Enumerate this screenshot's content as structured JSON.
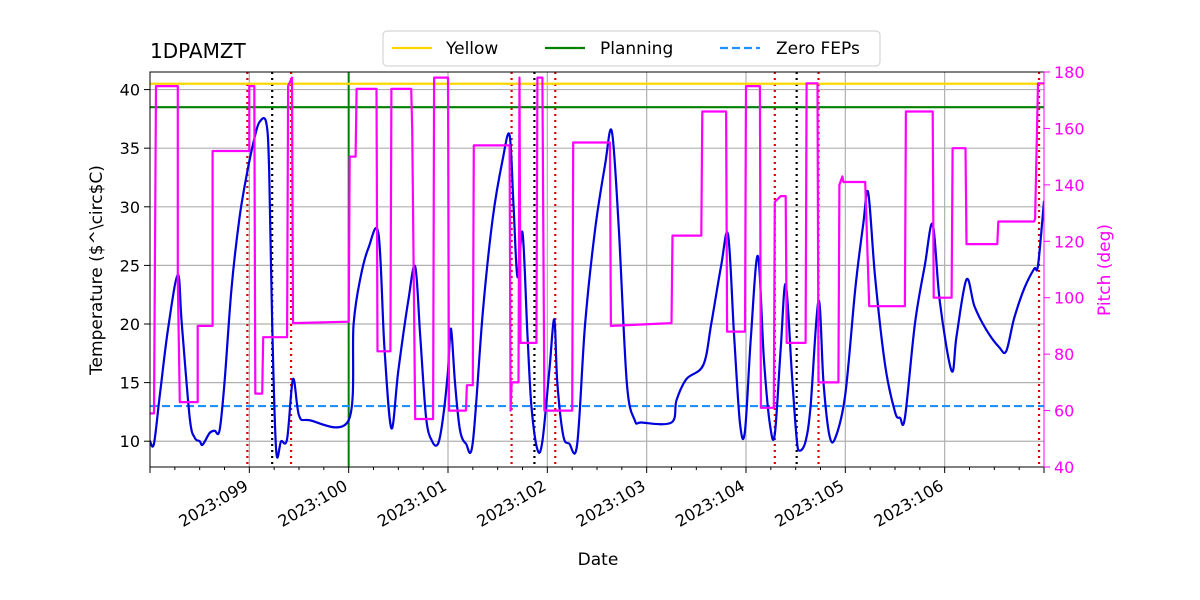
{
  "chart_data": {
    "type": "line",
    "title": "1DPAMZT",
    "xlabel": "Date",
    "ylabel": "Temperature ($^\\circ$C)",
    "ylabel_display": "Temperature ($^\\circ$C)",
    "y2label": "Pitch (deg)",
    "x_range_doy": [
      98.0,
      107.0
    ],
    "ylim": [
      7.8,
      41.5
    ],
    "y2lim": [
      40,
      180
    ],
    "x_ticks": [
      {
        "doy": 99,
        "label": "2023:099"
      },
      {
        "doy": 100,
        "label": "2023:100"
      },
      {
        "doy": 101,
        "label": "2023:101"
      },
      {
        "doy": 102,
        "label": "2023:102"
      },
      {
        "doy": 103,
        "label": "2023:103"
      },
      {
        "doy": 104,
        "label": "2023:104"
      },
      {
        "doy": 105,
        "label": "2023:105"
      },
      {
        "doy": 106,
        "label": "2023:106"
      }
    ],
    "y_ticks": [
      10,
      15,
      20,
      25,
      30,
      35,
      40
    ],
    "y2_ticks": [
      40,
      60,
      80,
      100,
      120,
      140,
      160,
      180
    ],
    "grid": true,
    "legend_placement": "top-center",
    "legend": [
      {
        "label": "Yellow",
        "color": "#ffd700",
        "style": "solid"
      },
      {
        "label": "Planning",
        "color": "#008000",
        "style": "solid"
      },
      {
        "label": "Zero FEPs",
        "color": "#1e90ff",
        "style": "dashed"
      }
    ],
    "limits": {
      "yellow": 40.5,
      "planning": 38.5,
      "zero_feps": 13.0
    },
    "planning_vline_doy": 100.0,
    "red_dotted_doy": [
      98.98,
      99.42,
      101.64,
      102.08,
      104.29,
      104.73,
      106.95
    ],
    "black_dotted_doy": [
      99.23,
      101.87,
      104.51
    ],
    "series": [
      {
        "name": "1DPAMZT",
        "axis": "left",
        "color": "#0000dd",
        "points": [
          [
            98.0,
            10.0
          ],
          [
            98.04,
            9.8
          ],
          [
            98.1,
            14.0
          ],
          [
            98.18,
            19.5
          ],
          [
            98.28,
            24.2
          ],
          [
            98.32,
            20.0
          ],
          [
            98.4,
            12.0
          ],
          [
            98.45,
            10.3
          ],
          [
            98.5,
            10.0
          ],
          [
            98.53,
            9.7
          ],
          [
            98.6,
            10.7
          ],
          [
            98.65,
            10.9
          ],
          [
            98.7,
            10.9
          ],
          [
            98.75,
            15.0
          ],
          [
            98.82,
            23.0
          ],
          [
            98.9,
            29.0
          ],
          [
            98.98,
            33.0
          ],
          [
            99.05,
            35.8
          ],
          [
            99.1,
            37.2
          ],
          [
            99.17,
            37.2
          ],
          [
            99.2,
            33.0
          ],
          [
            99.23,
            20.0
          ],
          [
            99.27,
            9.2
          ],
          [
            99.32,
            10.0
          ],
          [
            99.38,
            10.2
          ],
          [
            99.44,
            15.3
          ],
          [
            99.5,
            12.2
          ],
          [
            99.6,
            11.8
          ],
          [
            100.0,
            11.8
          ],
          [
            100.05,
            20.0
          ],
          [
            100.12,
            24.0
          ],
          [
            100.2,
            26.5
          ],
          [
            100.3,
            27.7
          ],
          [
            100.36,
            18.0
          ],
          [
            100.43,
            11.1
          ],
          [
            100.5,
            16.0
          ],
          [
            100.6,
            22.0
          ],
          [
            100.67,
            24.9
          ],
          [
            100.72,
            19.0
          ],
          [
            100.78,
            12.0
          ],
          [
            100.84,
            10.0
          ],
          [
            100.9,
            9.8
          ],
          [
            100.95,
            12.0
          ],
          [
            101.0,
            16.0
          ],
          [
            101.03,
            19.6
          ],
          [
            101.07,
            15.0
          ],
          [
            101.12,
            11.0
          ],
          [
            101.18,
            9.8
          ],
          [
            101.25,
            9.9
          ],
          [
            101.35,
            21.0
          ],
          [
            101.45,
            29.0
          ],
          [
            101.55,
            34.0
          ],
          [
            101.62,
            36.1
          ],
          [
            101.66,
            30.0
          ],
          [
            101.7,
            24.0
          ],
          [
            101.75,
            27.8
          ],
          [
            101.8,
            19.0
          ],
          [
            101.84,
            13.0
          ],
          [
            101.9,
            9.3
          ],
          [
            101.95,
            10.0
          ],
          [
            102.02,
            16.0
          ],
          [
            102.07,
            20.4
          ],
          [
            102.1,
            15.0
          ],
          [
            102.16,
            10.5
          ],
          [
            102.22,
            9.8
          ],
          [
            102.3,
            9.7
          ],
          [
            102.38,
            20.0
          ],
          [
            102.48,
            28.0
          ],
          [
            102.58,
            33.5
          ],
          [
            102.65,
            36.4
          ],
          [
            102.72,
            28.0
          ],
          [
            102.8,
            15.0
          ],
          [
            102.88,
            11.8
          ],
          [
            102.95,
            11.6
          ],
          [
            103.25,
            11.6
          ],
          [
            103.3,
            13.5
          ],
          [
            103.4,
            15.3
          ],
          [
            103.57,
            16.5
          ],
          [
            103.65,
            20.0
          ],
          [
            103.75,
            25.0
          ],
          [
            103.82,
            27.6
          ],
          [
            103.88,
            19.0
          ],
          [
            103.94,
            11.5
          ],
          [
            103.99,
            10.9
          ],
          [
            104.05,
            19.0
          ],
          [
            104.12,
            25.8
          ],
          [
            104.18,
            17.0
          ],
          [
            104.24,
            11.5
          ],
          [
            104.29,
            10.6
          ],
          [
            104.35,
            18.0
          ],
          [
            104.4,
            23.4
          ],
          [
            104.46,
            16.0
          ],
          [
            104.51,
            10.2
          ],
          [
            104.54,
            9.2
          ],
          [
            104.6,
            10.0
          ],
          [
            104.65,
            13.0
          ],
          [
            104.73,
            22.0
          ],
          [
            104.78,
            15.0
          ],
          [
            104.84,
            10.5
          ],
          [
            104.9,
            10.3
          ],
          [
            105.0,
            14.0
          ],
          [
            105.1,
            23.0
          ],
          [
            105.18,
            28.5
          ],
          [
            105.23,
            31.2
          ],
          [
            105.3,
            24.0
          ],
          [
            105.4,
            16.5
          ],
          [
            105.5,
            12.5
          ],
          [
            105.55,
            12.0
          ],
          [
            105.6,
            12.0
          ],
          [
            105.7,
            20.0
          ],
          [
            105.8,
            25.0
          ],
          [
            105.88,
            28.5
          ],
          [
            105.95,
            22.0
          ],
          [
            106.07,
            16.0
          ],
          [
            106.12,
            19.0
          ],
          [
            106.22,
            23.8
          ],
          [
            106.3,
            21.5
          ],
          [
            106.42,
            19.5
          ],
          [
            106.55,
            18.0
          ],
          [
            106.62,
            17.7
          ],
          [
            106.7,
            20.5
          ],
          [
            106.8,
            23.0
          ],
          [
            106.9,
            24.7
          ],
          [
            106.94,
            25.0
          ],
          [
            107.0,
            30.5
          ]
        ]
      },
      {
        "name": "Pitch",
        "axis": "right",
        "color": "#ff00ff",
        "points": [
          [
            98.0,
            59.0
          ],
          [
            98.04,
            59.0
          ],
          [
            98.06,
            175.0
          ],
          [
            98.28,
            175.0
          ],
          [
            98.28,
            106.0
          ],
          [
            98.3,
            63.0
          ],
          [
            98.48,
            63.0
          ],
          [
            98.48,
            90.0
          ],
          [
            98.63,
            90.0
          ],
          [
            98.63,
            152.0
          ],
          [
            99.0,
            152.0
          ],
          [
            99.0,
            175.0
          ],
          [
            99.05,
            175.0
          ],
          [
            99.06,
            66.0
          ],
          [
            99.13,
            66.0
          ],
          [
            99.14,
            86.0
          ],
          [
            99.38,
            86.0
          ],
          [
            99.39,
            175.0
          ],
          [
            99.43,
            178.0
          ],
          [
            99.44,
            91.0
          ],
          [
            100.0,
            91.5
          ],
          [
            100.01,
            150.0
          ],
          [
            100.07,
            150.0
          ],
          [
            100.08,
            174.0
          ],
          [
            100.28,
            174.0
          ],
          [
            100.29,
            81.0
          ],
          [
            100.42,
            81.0
          ],
          [
            100.43,
            174.0
          ],
          [
            100.63,
            174.0
          ],
          [
            100.64,
            160.0
          ],
          [
            100.67,
            57.0
          ],
          [
            100.85,
            57.0
          ],
          [
            100.86,
            178.0
          ],
          [
            101.0,
            178.0
          ],
          [
            101.01,
            60.0
          ],
          [
            101.18,
            60.0
          ],
          [
            101.19,
            69.0
          ],
          [
            101.25,
            69.0
          ],
          [
            101.26,
            154.0
          ],
          [
            101.62,
            154.0
          ],
          [
            101.63,
            60.0
          ],
          [
            101.64,
            70.0
          ],
          [
            101.71,
            70.0
          ],
          [
            101.72,
            178.0
          ],
          [
            101.73,
            84.0
          ],
          [
            101.89,
            84.0
          ],
          [
            101.9,
            178.0
          ],
          [
            101.95,
            178.0
          ],
          [
            101.97,
            60.0
          ],
          [
            102.25,
            60.0
          ],
          [
            102.26,
            155.0
          ],
          [
            102.63,
            155.0
          ],
          [
            102.64,
            90.0
          ],
          [
            103.25,
            91.0
          ],
          [
            103.26,
            122.0
          ],
          [
            103.55,
            122.0
          ],
          [
            103.56,
            166.0
          ],
          [
            103.8,
            166.0
          ],
          [
            103.81,
            88.0
          ],
          [
            103.99,
            88.0
          ],
          [
            104.0,
            175.0
          ],
          [
            104.14,
            175.0
          ],
          [
            104.15,
            61.0
          ],
          [
            104.28,
            61.0
          ],
          [
            104.29,
            134.0
          ],
          [
            104.35,
            136.0
          ],
          [
            104.4,
            136.0
          ],
          [
            104.41,
            84.0
          ],
          [
            104.6,
            84.0
          ],
          [
            104.61,
            176.0
          ],
          [
            104.72,
            176.0
          ],
          [
            104.73,
            70.0
          ],
          [
            104.93,
            70.0
          ],
          [
            104.94,
            140.0
          ],
          [
            104.97,
            143.0
          ],
          [
            104.98,
            141.0
          ],
          [
            105.2,
            141.0
          ],
          [
            105.24,
            97.0
          ],
          [
            105.6,
            97.0
          ],
          [
            105.61,
            166.0
          ],
          [
            105.88,
            166.0
          ],
          [
            105.89,
            100.0
          ],
          [
            106.07,
            100.0
          ],
          [
            106.08,
            153.0
          ],
          [
            106.21,
            153.0
          ],
          [
            106.22,
            119.0
          ],
          [
            106.53,
            119.0
          ],
          [
            106.54,
            127.0
          ],
          [
            106.9,
            127.0
          ],
          [
            106.91,
            128.0
          ],
          [
            106.94,
            176.0
          ],
          [
            107.0,
            176.0
          ]
        ]
      }
    ]
  }
}
